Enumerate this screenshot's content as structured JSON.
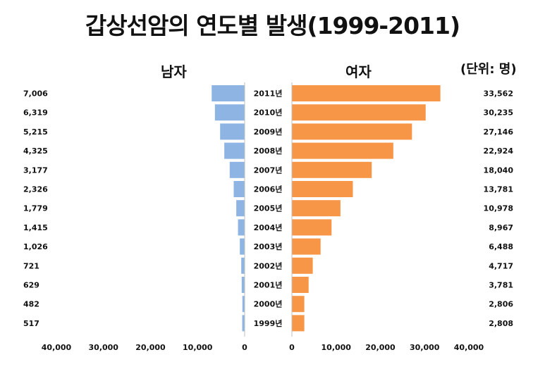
{
  "title": "갑상선암의 연도별 발생(1999-2011)",
  "unit_label": "(단위: 명)",
  "colors": {
    "male": "#8db4e2",
    "female": "#f79646"
  },
  "chart_data": {
    "type": "bar",
    "orientation": "horizontal",
    "categories": [
      "2011년",
      "2010년",
      "2009년",
      "2008년",
      "2007년",
      "2006년",
      "2005년",
      "2004년",
      "2003년",
      "2002년",
      "2001년",
      "2000년",
      "1999년"
    ],
    "panels": [
      {
        "name": "남자",
        "values": [
          7006,
          6319,
          5215,
          4325,
          3177,
          2326,
          1779,
          1415,
          1026,
          721,
          629,
          482,
          517
        ],
        "value_labels": [
          "7,006",
          "6,319",
          "5,215",
          "4,325",
          "3,177",
          "2,326",
          "1,779",
          "1,415",
          "1,026",
          "721",
          "629",
          "482",
          "517"
        ],
        "xlim": [
          40000,
          0
        ],
        "ticks": [
          "40,000",
          "30,000",
          "20,000",
          "10,000",
          "0"
        ]
      },
      {
        "name": "여자",
        "values": [
          33562,
          30235,
          27146,
          22924,
          18040,
          13781,
          10978,
          8967,
          6488,
          4717,
          3781,
          2806,
          2808
        ],
        "value_labels": [
          "33,562",
          "30,235",
          "27,146",
          "22,924",
          "18,040",
          "13,781",
          "10,978",
          "8,967",
          "6,488",
          "4,717",
          "3,781",
          "2,806",
          "2,808"
        ],
        "xlim": [
          0,
          40000
        ],
        "ticks": [
          "0",
          "10,000",
          "20,000",
          "30,000",
          "40,000"
        ]
      }
    ]
  }
}
